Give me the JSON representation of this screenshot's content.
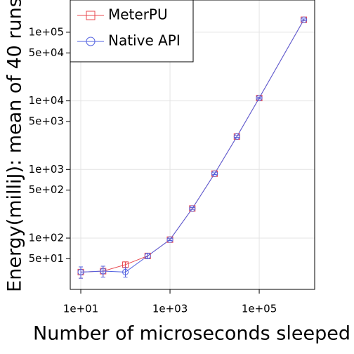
{
  "chart_data": {
    "type": "line",
    "x_label": "Number of microseconds sleeped",
    "y_label": "Energy(milliJ): mean of 40 runs",
    "x": [
      10,
      31.6,
      100,
      316,
      1000,
      3162,
      10000,
      31623,
      100000,
      1000000
    ],
    "series": [
      {
        "name": "MeterPU",
        "color": "#e8484f",
        "marker": "square",
        "values": [
          32,
          33,
          41,
          55,
          95,
          270,
          870,
          3020,
          11000,
          152000
        ],
        "errors": [
          6,
          6,
          4,
          5,
          3,
          8,
          25,
          80,
          300,
          4000
        ]
      },
      {
        "name": "Native API",
        "color": "#5060e0",
        "marker": "circle",
        "values": [
          32,
          33,
          32,
          55,
          95,
          270,
          870,
          3020,
          11000,
          152000
        ],
        "errors": [
          6,
          6,
          5,
          5,
          3,
          8,
          25,
          80,
          300,
          4000
        ]
      }
    ],
    "xscale": "log",
    "yscale": "log",
    "xlim": [
      5.8,
      1750000
    ],
    "ylim": [
      17.9,
      295000
    ],
    "xticks": [
      {
        "value": 10,
        "label": "1e+01"
      },
      {
        "value": 1000,
        "label": "1e+03"
      },
      {
        "value": 100000,
        "label": "1e+05"
      }
    ],
    "yticks": [
      {
        "value": 50,
        "label": "5e+01"
      },
      {
        "value": 100,
        "label": "1e+02"
      },
      {
        "value": 500,
        "label": "5e+02"
      },
      {
        "value": 1000,
        "label": "1e+03"
      },
      {
        "value": 5000,
        "label": "5e+03"
      },
      {
        "value": 10000,
        "label": "1e+04"
      },
      {
        "value": 50000,
        "label": "5e+04"
      },
      {
        "value": 100000,
        "label": "1e+05"
      }
    ],
    "grid": true,
    "legend": "top-left"
  }
}
